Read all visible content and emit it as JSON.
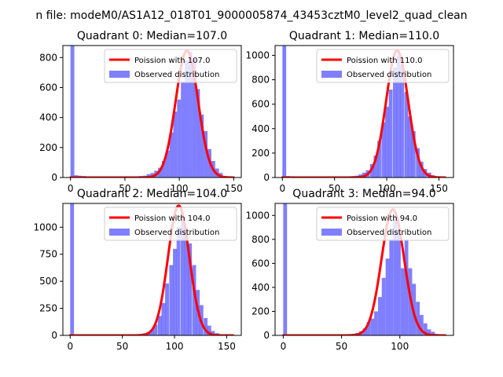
{
  "figure": {
    "suptitle": "n file: modeM0/AS1A12_018T01_9000005874_43453cztM0_level2_quad_clean"
  },
  "colors": {
    "poisson": "#ff0000",
    "observed": "#0000ff"
  },
  "chart_data": [
    {
      "type": "bar",
      "title": "Quadrant 0: Median=107.0",
      "xlim": [
        -7,
        157
      ],
      "ylim": [
        0,
        880
      ],
      "xticks": [
        0,
        50,
        100,
        150
      ],
      "yticks": [
        0,
        200,
        400,
        600,
        800
      ],
      "legend": {
        "placement": "top-right",
        "entries": [
          "Poission with 107.0",
          "Observed distribution"
        ]
      },
      "poisson_label": "Poission with 107.0",
      "observed_label": "Observed distribution",
      "poisson_mean": 107.0,
      "poisson_peak": 845,
      "poisson_sigma": 10.3,
      "poisson_x_range": [
        0,
        150
      ],
      "hist_bin_width": 3.5,
      "hist_bins": [
        [
          0,
          880
        ],
        [
          3.5,
          15
        ],
        [
          7,
          12
        ],
        [
          10.5,
          10
        ],
        [
          14,
          8
        ],
        [
          52.5,
          4
        ],
        [
          56,
          5
        ],
        [
          59.5,
          8
        ],
        [
          63,
          10
        ],
        [
          66.5,
          12
        ],
        [
          70,
          22
        ],
        [
          73.5,
          30
        ],
        [
          77,
          45
        ],
        [
          80.5,
          65
        ],
        [
          84,
          110
        ],
        [
          87.5,
          180
        ],
        [
          91,
          300
        ],
        [
          94.5,
          440
        ],
        [
          98,
          520
        ],
        [
          101.5,
          640
        ],
        [
          105,
          780
        ],
        [
          108.5,
          840
        ],
        [
          112,
          790
        ],
        [
          115.5,
          590
        ],
        [
          119,
          420
        ],
        [
          122.5,
          310
        ],
        [
          126,
          190
        ],
        [
          129.5,
          110
        ],
        [
          133,
          60
        ],
        [
          136.5,
          30
        ],
        [
          140,
          10
        ],
        [
          143.5,
          5
        ]
      ]
    },
    {
      "type": "bar",
      "title": "Quadrant 1: Median=110.0",
      "xlim": [
        -7,
        164
      ],
      "ylim": [
        0,
        1080
      ],
      "xticks": [
        0,
        50,
        100,
        150
      ],
      "yticks": [
        0,
        200,
        400,
        600,
        800,
        1000
      ],
      "legend": {
        "placement": "top-right",
        "entries": [
          "Poission with 110.0",
          "Observed distribution"
        ]
      },
      "poisson_label": "Poission with 110.0",
      "observed_label": "Observed distribution",
      "poisson_mean": 110.0,
      "poisson_peak": 1040,
      "poisson_sigma": 10.5,
      "poisson_x_range": [
        0,
        156
      ],
      "hist_bin_width": 3.65,
      "hist_bins": [
        [
          0,
          1080
        ],
        [
          3.65,
          12
        ],
        [
          7.3,
          10
        ],
        [
          11,
          8
        ],
        [
          55,
          5
        ],
        [
          58.5,
          8
        ],
        [
          62,
          10
        ],
        [
          66,
          12
        ],
        [
          69.5,
          15
        ],
        [
          73,
          25
        ],
        [
          76.5,
          40
        ],
        [
          80,
          60
        ],
        [
          84,
          110
        ],
        [
          87.5,
          180
        ],
        [
          91,
          300
        ],
        [
          95,
          450
        ],
        [
          98.5,
          580
        ],
        [
          102,
          720
        ],
        [
          106,
          900
        ],
        [
          109.5,
          1000
        ],
        [
          113,
          920
        ],
        [
          117,
          700
        ],
        [
          120.5,
          500
        ],
        [
          124,
          380
        ],
        [
          128,
          240
        ],
        [
          131.5,
          130
        ],
        [
          135,
          70
        ],
        [
          139,
          40
        ],
        [
          142.5,
          20
        ],
        [
          146,
          10
        ]
      ]
    },
    {
      "type": "bar",
      "title": "Quadrant 2: Median=104.0",
      "xlim": [
        -7,
        164
      ],
      "ylim": [
        0,
        1220
      ],
      "xticks": [
        0,
        50,
        100,
        150
      ],
      "yticks": [
        0,
        250,
        500,
        750,
        1000
      ],
      "legend": {
        "placement": "top-right",
        "entries": [
          "Poission with 104.0",
          "Observed distribution"
        ]
      },
      "poisson_label": "Poission with 104.0",
      "observed_label": "Observed distribution",
      "poisson_mean": 104.0,
      "poisson_peak": 1200,
      "poisson_sigma": 10.2,
      "poisson_x_range": [
        0,
        156
      ],
      "hist_bin_width": 3.65,
      "hist_bins": [
        [
          0,
          1220
        ],
        [
          3.65,
          5
        ],
        [
          7.3,
          4
        ],
        [
          58.5,
          5
        ],
        [
          62,
          8
        ],
        [
          66,
          12
        ],
        [
          69.5,
          20
        ],
        [
          73,
          30
        ],
        [
          76.5,
          50
        ],
        [
          80,
          100
        ],
        [
          84,
          180
        ],
        [
          87.5,
          300
        ],
        [
          91,
          480
        ],
        [
          95,
          650
        ],
        [
          98.5,
          800
        ],
        [
          102,
          1000
        ],
        [
          106,
          1100
        ],
        [
          109.5,
          1000
        ],
        [
          113,
          850
        ],
        [
          117,
          650
        ],
        [
          120.5,
          420
        ],
        [
          124,
          280
        ],
        [
          128,
          160
        ],
        [
          131.5,
          90
        ],
        [
          135,
          40
        ],
        [
          139,
          20
        ],
        [
          142.5,
          8
        ]
      ]
    },
    {
      "type": "bar",
      "title": "Quadrant 3: Median=94.0",
      "xlim": [
        -7,
        146
      ],
      "ylim": [
        0,
        1100
      ],
      "xticks": [
        0,
        50,
        100
      ],
      "yticks": [
        0,
        200,
        400,
        600,
        800,
        1000
      ],
      "legend": {
        "placement": "top-right",
        "entries": [
          "Poission with 94.0",
          "Observed distribution"
        ]
      },
      "poisson_label": "Poission with 94.0",
      "observed_label": "Observed distribution",
      "poisson_mean": 94.0,
      "poisson_peak": 1050,
      "poisson_sigma": 9.7,
      "poisson_x_range": [
        0,
        139
      ],
      "hist_bin_width": 3.25,
      "hist_bins": [
        [
          0,
          1100
        ],
        [
          3.25,
          6
        ],
        [
          6.5,
          5
        ],
        [
          52,
          5
        ],
        [
          55.3,
          8
        ],
        [
          58.5,
          12
        ],
        [
          61.8,
          20
        ],
        [
          65,
          35
        ],
        [
          68.3,
          60
        ],
        [
          71.5,
          110
        ],
        [
          74.8,
          140
        ],
        [
          78,
          200
        ],
        [
          81.3,
          320
        ],
        [
          84.5,
          480
        ],
        [
          87.8,
          640
        ],
        [
          91,
          800
        ],
        [
          94.3,
          1000
        ],
        [
          97.5,
          880
        ],
        [
          100.8,
          560
        ],
        [
          104,
          800
        ],
        [
          107.3,
          560
        ],
        [
          110.5,
          430
        ],
        [
          113.8,
          280
        ],
        [
          117,
          170
        ],
        [
          120.3,
          100
        ],
        [
          123.5,
          50
        ],
        [
          126.8,
          30
        ],
        [
          130,
          12
        ]
      ]
    }
  ]
}
